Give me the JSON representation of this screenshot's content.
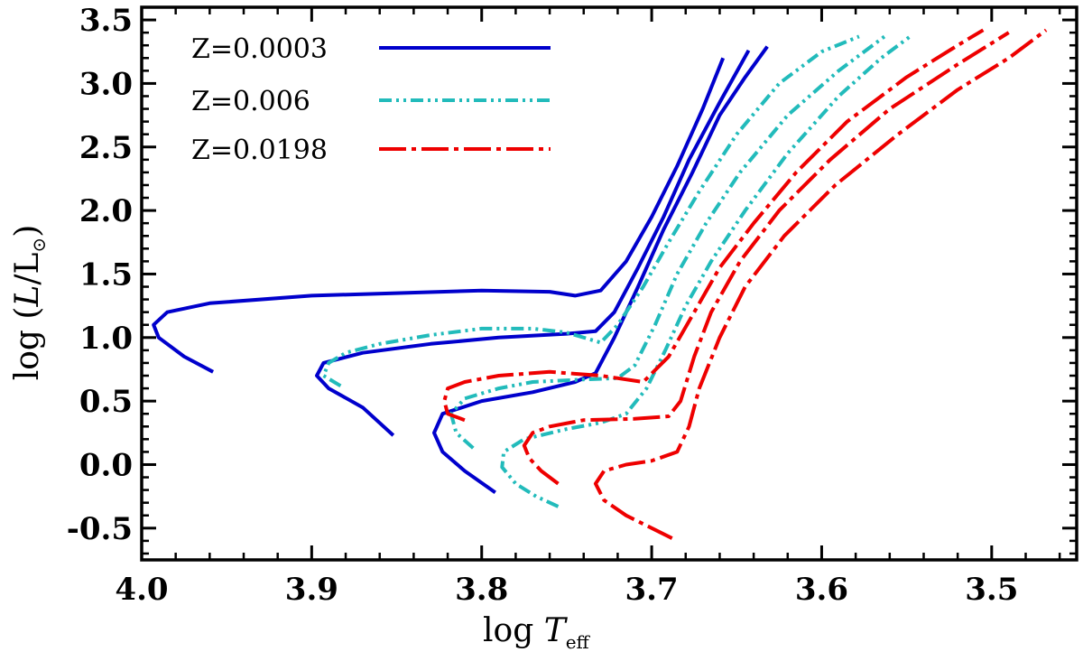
{
  "chart_data": {
    "type": "line",
    "title": "",
    "xlabel_main": "log ",
    "xlabel_var": "T",
    "xlabel_sub": "eff",
    "ylabel_main": "log (",
    "ylabel_var": "L",
    "ylabel_mid": "/L",
    "ylabel_sun": "⊙",
    "ylabel_end": ")",
    "xlim": [
      4.0,
      3.45
    ],
    "ylim": [
      -0.75,
      3.6
    ],
    "x_ticks": [
      4.0,
      3.9,
      3.8,
      3.7,
      3.6,
      3.5
    ],
    "x_tick_labels": [
      "4.0",
      "3.9",
      "3.8",
      "3.7",
      "3.6",
      "3.5"
    ],
    "y_ticks": [
      -0.5,
      0.0,
      0.5,
      1.0,
      1.5,
      2.0,
      2.5,
      3.0,
      3.5
    ],
    "y_tick_labels": [
      "-0.5",
      "0.0",
      "0.5",
      "1.0",
      "1.5",
      "2.0",
      "2.5",
      "3.0",
      "3.5"
    ],
    "x_minor_step": 0.02,
    "y_minor_step": 0.1,
    "grid": false,
    "legend_position": "top-left",
    "legend": [
      {
        "label": "Z=0.0003",
        "color": "#0000cc",
        "dash": "solid"
      },
      {
        "label": "Z=0.006",
        "color": "#22bbbb",
        "dash": "dashdotdot"
      },
      {
        "label": "Z=0.0198",
        "color": "#ee0000",
        "dash": "longdash-dot"
      }
    ],
    "series": [
      {
        "name": "Z=0.0003 track 1",
        "group": 0,
        "points": [
          [
            3.958,
            0.73
          ],
          [
            3.975,
            0.85
          ],
          [
            3.99,
            1.0
          ],
          [
            3.993,
            1.1
          ],
          [
            3.985,
            1.2
          ],
          [
            3.96,
            1.27
          ],
          [
            3.9,
            1.33
          ],
          [
            3.85,
            1.35
          ],
          [
            3.8,
            1.37
          ],
          [
            3.76,
            1.36
          ],
          [
            3.745,
            1.33
          ],
          [
            3.73,
            1.37
          ],
          [
            3.715,
            1.6
          ],
          [
            3.7,
            1.95
          ],
          [
            3.685,
            2.35
          ],
          [
            3.67,
            2.8
          ],
          [
            3.658,
            3.2
          ]
        ]
      },
      {
        "name": "Z=0.0003 track 2",
        "group": 0,
        "points": [
          [
            3.852,
            0.23
          ],
          [
            3.87,
            0.45
          ],
          [
            3.89,
            0.6
          ],
          [
            3.897,
            0.7
          ],
          [
            3.893,
            0.8
          ],
          [
            3.87,
            0.88
          ],
          [
            3.83,
            0.95
          ],
          [
            3.79,
            1.0
          ],
          [
            3.75,
            1.03
          ],
          [
            3.733,
            1.05
          ],
          [
            3.722,
            1.2
          ],
          [
            3.708,
            1.55
          ],
          [
            3.693,
            1.95
          ],
          [
            3.678,
            2.4
          ],
          [
            3.66,
            2.85
          ],
          [
            3.643,
            3.26
          ]
        ]
      },
      {
        "name": "Z=0.0003 track 3",
        "group": 0,
        "points": [
          [
            3.792,
            -0.22
          ],
          [
            3.81,
            -0.05
          ],
          [
            3.823,
            0.1
          ],
          [
            3.828,
            0.25
          ],
          [
            3.823,
            0.4
          ],
          [
            3.8,
            0.5
          ],
          [
            3.77,
            0.57
          ],
          [
            3.745,
            0.65
          ],
          [
            3.733,
            0.72
          ],
          [
            3.722,
            1.0
          ],
          [
            3.708,
            1.4
          ],
          [
            3.693,
            1.85
          ],
          [
            3.676,
            2.3
          ],
          [
            3.66,
            2.75
          ],
          [
            3.645,
            3.05
          ],
          [
            3.632,
            3.29
          ]
        ]
      },
      {
        "name": "Z=0.006 track 1",
        "group": 1,
        "points": [
          [
            3.883,
            0.62
          ],
          [
            3.893,
            0.7
          ],
          [
            3.89,
            0.8
          ],
          [
            3.88,
            0.88
          ],
          [
            3.86,
            0.95
          ],
          [
            3.83,
            1.02
          ],
          [
            3.8,
            1.07
          ],
          [
            3.77,
            1.07
          ],
          [
            3.75,
            1.04
          ],
          [
            3.73,
            0.96
          ],
          [
            3.72,
            1.1
          ],
          [
            3.705,
            1.4
          ],
          [
            3.69,
            1.75
          ],
          [
            3.672,
            2.15
          ],
          [
            3.65,
            2.6
          ],
          [
            3.625,
            3.0
          ],
          [
            3.6,
            3.25
          ],
          [
            3.578,
            3.37
          ]
        ]
      },
      {
        "name": "Z=0.006 track 2",
        "group": 1,
        "points": [
          [
            3.805,
            0.13
          ],
          [
            3.815,
            0.25
          ],
          [
            3.818,
            0.4
          ],
          [
            3.81,
            0.52
          ],
          [
            3.79,
            0.6
          ],
          [
            3.77,
            0.65
          ],
          [
            3.74,
            0.67
          ],
          [
            3.72,
            0.68
          ],
          [
            3.71,
            0.78
          ],
          [
            3.698,
            1.1
          ],
          [
            3.685,
            1.5
          ],
          [
            3.668,
            1.9
          ],
          [
            3.648,
            2.3
          ],
          [
            3.62,
            2.75
          ],
          [
            3.59,
            3.1
          ],
          [
            3.563,
            3.37
          ]
        ]
      },
      {
        "name": "Z=0.006 track 3",
        "group": 1,
        "points": [
          [
            3.755,
            -0.33
          ],
          [
            3.768,
            -0.25
          ],
          [
            3.78,
            -0.15
          ],
          [
            3.788,
            -0.02
          ],
          [
            3.787,
            0.1
          ],
          [
            3.775,
            0.2
          ],
          [
            3.75,
            0.28
          ],
          [
            3.73,
            0.33
          ],
          [
            3.715,
            0.4
          ],
          [
            3.703,
            0.6
          ],
          [
            3.692,
            0.9
          ],
          [
            3.68,
            1.25
          ],
          [
            3.665,
            1.6
          ],
          [
            3.645,
            2.0
          ],
          [
            3.62,
            2.45
          ],
          [
            3.59,
            2.9
          ],
          [
            3.565,
            3.2
          ],
          [
            3.548,
            3.37
          ]
        ]
      },
      {
        "name": "Z=0.0198 track 1",
        "group": 2,
        "points": [
          [
            3.81,
            0.35
          ],
          [
            3.82,
            0.4
          ],
          [
            3.822,
            0.5
          ],
          [
            3.82,
            0.6
          ],
          [
            3.81,
            0.65
          ],
          [
            3.79,
            0.7
          ],
          [
            3.76,
            0.73
          ],
          [
            3.73,
            0.7
          ],
          [
            3.705,
            0.65
          ],
          [
            3.69,
            0.85
          ],
          [
            3.675,
            1.2
          ],
          [
            3.66,
            1.55
          ],
          [
            3.64,
            1.9
          ],
          [
            3.615,
            2.3
          ],
          [
            3.585,
            2.7
          ],
          [
            3.55,
            3.05
          ],
          [
            3.52,
            3.3
          ],
          [
            3.505,
            3.42
          ]
        ]
      },
      {
        "name": "Z=0.0198 track 2",
        "group": 2,
        "points": [
          [
            3.755,
            -0.15
          ],
          [
            3.765,
            -0.05
          ],
          [
            3.772,
            0.05
          ],
          [
            3.775,
            0.15
          ],
          [
            3.77,
            0.25
          ],
          [
            3.76,
            0.3
          ],
          [
            3.74,
            0.35
          ],
          [
            3.71,
            0.36
          ],
          [
            3.69,
            0.38
          ],
          [
            3.683,
            0.5
          ],
          [
            3.675,
            0.85
          ],
          [
            3.665,
            1.2
          ],
          [
            3.648,
            1.6
          ],
          [
            3.625,
            2.0
          ],
          [
            3.595,
            2.4
          ],
          [
            3.56,
            2.8
          ],
          [
            3.52,
            3.15
          ],
          [
            3.49,
            3.4
          ]
        ]
      },
      {
        "name": "Z=0.0198 track 3",
        "group": 2,
        "points": [
          [
            3.688,
            -0.58
          ],
          [
            3.7,
            -0.5
          ],
          [
            3.715,
            -0.4
          ],
          [
            3.728,
            -0.28
          ],
          [
            3.733,
            -0.15
          ],
          [
            3.728,
            -0.05
          ],
          [
            3.715,
            0.0
          ],
          [
            3.7,
            0.03
          ],
          [
            3.685,
            0.1
          ],
          [
            3.678,
            0.3
          ],
          [
            3.672,
            0.6
          ],
          [
            3.66,
            1.0
          ],
          [
            3.645,
            1.4
          ],
          [
            3.622,
            1.8
          ],
          [
            3.592,
            2.2
          ],
          [
            3.555,
            2.6
          ],
          [
            3.52,
            2.95
          ],
          [
            3.49,
            3.2
          ],
          [
            3.468,
            3.42
          ]
        ]
      }
    ]
  }
}
